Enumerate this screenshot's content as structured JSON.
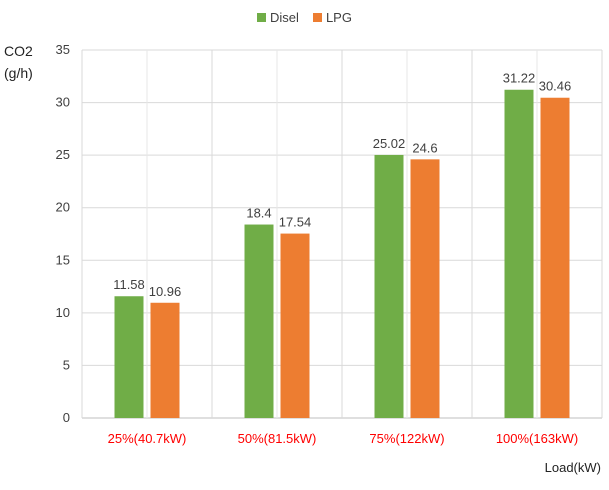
{
  "chart_data": {
    "type": "bar",
    "title": "",
    "ylabel": [
      "CO2",
      "(g/h)"
    ],
    "xlabel": "Load(kW)",
    "categories": [
      "25%(40.7kW)",
      "50%(81.5kW)",
      "75%(122kW)",
      "100%(163kW)"
    ],
    "series": [
      {
        "name": "Disel",
        "color": "#70ad47",
        "values": [
          11.58,
          18.4,
          25.02,
          31.22
        ]
      },
      {
        "name": "LPG",
        "color": "#ed7d31",
        "values": [
          10.96,
          17.54,
          24.6,
          30.46
        ]
      }
    ],
    "ylim": [
      0,
      35
    ],
    "yticks": [
      0,
      5,
      10,
      15,
      20,
      25,
      30,
      35
    ],
    "grid": true,
    "legend": "top",
    "category_label_color": "#ff0000"
  }
}
